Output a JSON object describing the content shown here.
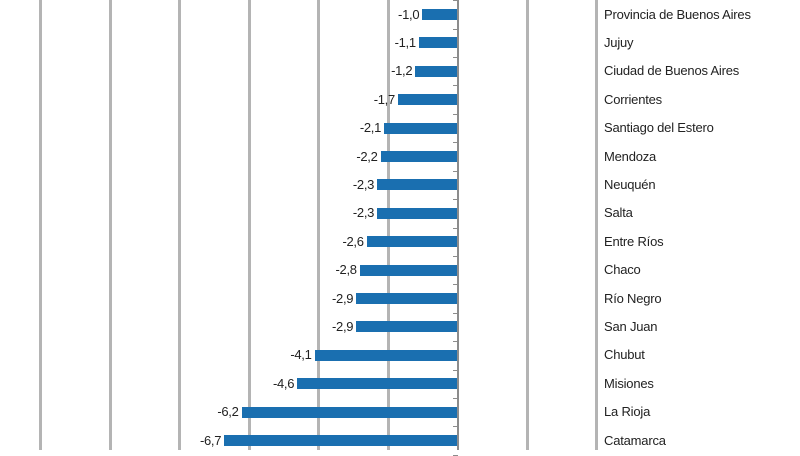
{
  "chart_data": {
    "type": "bar",
    "orientation": "horizontal",
    "title": "",
    "xlabel": "",
    "ylabel": "",
    "xlim": [
      -12,
      4
    ],
    "grid": true,
    "gridline_values": [
      -12,
      -10,
      -8,
      -6,
      -4,
      -2,
      2,
      4
    ],
    "bar_color": "#1a6fb0",
    "categories": [
      "Provincia de Buenos Aires",
      "Jujuy",
      "Ciudad de Buenos Aires",
      "Corrientes",
      "Santiago del Estero",
      "Mendoza",
      "Neuquén",
      "Salta",
      "Entre Ríos",
      "Chaco",
      "Río Negro",
      "San Juan",
      "Chubut",
      "Misiones",
      "La Rioja",
      "Catamarca"
    ],
    "values": [
      -1.0,
      -1.1,
      -1.2,
      -1.7,
      -2.1,
      -2.2,
      -2.3,
      -2.3,
      -2.6,
      -2.8,
      -2.9,
      -2.9,
      -4.1,
      -4.6,
      -6.2,
      -6.7
    ],
    "value_labels": [
      "-1,0",
      "-1,1",
      "-1,2",
      "-1,7",
      "-2,1",
      "-2,2",
      "-2,3",
      "-2,3",
      "-2,6",
      "-2,8",
      "-2,9",
      "-2,9",
      "-4,1",
      "-4,6",
      "-6,2",
      "-6,7"
    ]
  }
}
